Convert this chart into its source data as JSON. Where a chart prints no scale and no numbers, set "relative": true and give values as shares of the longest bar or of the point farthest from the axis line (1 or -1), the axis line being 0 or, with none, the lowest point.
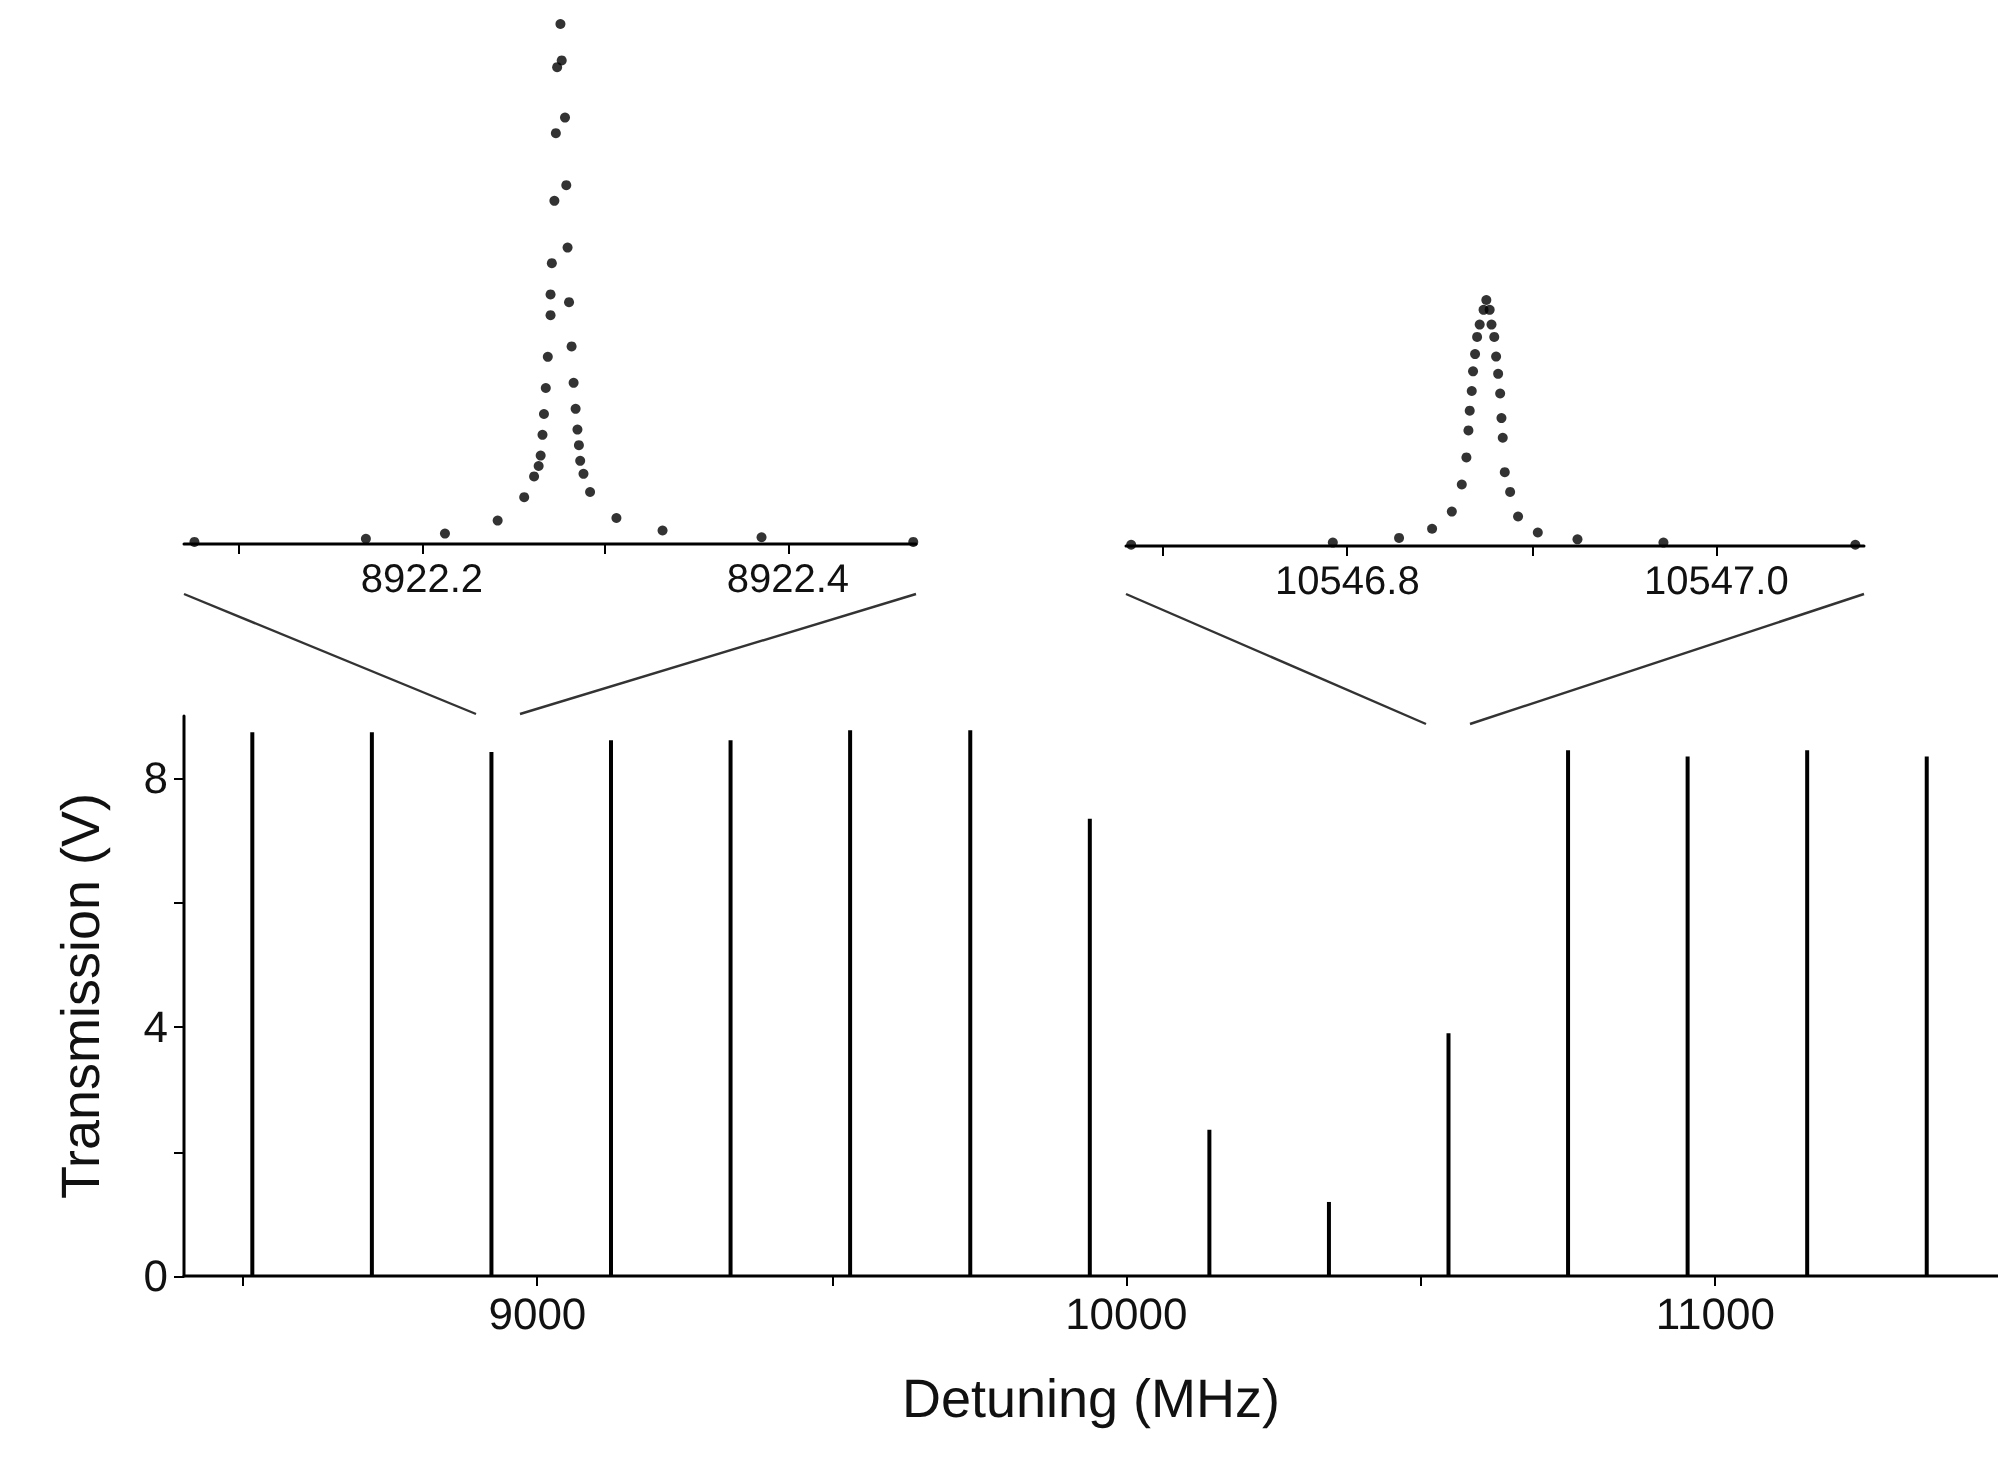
{
  "chart_data": [
    {
      "type": "bar",
      "xlabel": "Detuning (MHz)",
      "ylabel": "Transmission (V)",
      "x": [
        8516,
        8719,
        8922,
        9125,
        9328,
        9531,
        9735,
        9938,
        10141,
        10344,
        10547,
        10750,
        10953,
        11156,
        11359
      ],
      "values": [
        8.74,
        8.74,
        8.42,
        8.61,
        8.61,
        8.77,
        8.77,
        7.35,
        2.35,
        1.19,
        3.9,
        8.45,
        8.35,
        8.45,
        8.35
      ],
      "color": "#000000",
      "xlim": [
        8400,
        11480
      ],
      "xticks": [
        {
          "value": 8500,
          "label": null
        },
        9000,
        {
          "value": 9500,
          "label": null
        },
        10000,
        {
          "value": 10500,
          "label": null
        },
        11000
      ],
      "ylim": [
        0,
        9
      ],
      "yticks": [
        0,
        {
          "value": 2,
          "label": null
        },
        4,
        {
          "value": 6,
          "label": null
        },
        8
      ],
      "grid": false
    },
    {
      "type": "scatter",
      "relative": true,
      "marker": "circle",
      "color": "#000000",
      "x": [
        8922.0757,
        8922.1694,
        8922.2126,
        8922.2414,
        8922.2559,
        8922.2613,
        8922.2638,
        8922.2649,
        8922.2659,
        8922.2667,
        8922.2677,
        8922.2688,
        8922.2703,
        8922.2703,
        8922.271,
        8922.2724,
        8922.2732,
        8922.2739,
        8922.2757,
        8922.2764,
        8922.2782,
        8922.2789,
        8922.2796,
        8922.2804,
        8922.2818,
        8922.2829,
        8922.284,
        8922.285,
        8922.2858,
        8922.2865,
        8922.2883,
        8922.2919,
        8922.3063,
        8922.3315,
        8922.3856,
        8922.4685
      ],
      "values": [
        0.004,
        0.01,
        0.02,
        0.045,
        0.09,
        0.13,
        0.15,
        0.17,
        0.21,
        0.25,
        0.3,
        0.36,
        0.48,
        0.44,
        0.54,
        0.66,
        0.79,
        0.917,
        1.0,
        0.93,
        0.82,
        0.69,
        0.57,
        0.465,
        0.38,
        0.31,
        0.26,
        0.22,
        0.19,
        0.16,
        0.135,
        0.1,
        0.05,
        0.026,
        0.013,
        0.004
      ],
      "xlim": [
        8922.07,
        8922.47
      ],
      "xticks": [
        {
          "value": 8922.1,
          "label": null
        },
        8922.2,
        {
          "value": 8922.3,
          "label": null
        },
        8922.4
      ],
      "grid": false
    },
    {
      "type": "scatter",
      "relative": true,
      "marker": "circle",
      "color": "#000000",
      "x": [
        10546.6828,
        10546.7921,
        10546.828,
        10546.8459,
        10546.8566,
        10546.862,
        10546.8645,
        10546.8656,
        10546.8663,
        10546.8674,
        10546.8681,
        10546.8692,
        10546.8703,
        10546.8717,
        10546.8738,
        10546.8753,
        10546.8771,
        10546.8781,
        10546.8796,
        10546.8806,
        10546.8817,
        10546.8828,
        10546.8835,
        10546.8842,
        10546.8853,
        10546.8882,
        10546.8925,
        10546.9032,
        10546.9247,
        10546.9713,
        10547.0753
      ],
      "values": [
        0.005,
        0.014,
        0.033,
        0.07,
        0.14,
        0.25,
        0.36,
        0.47,
        0.55,
        0.63,
        0.71,
        0.78,
        0.85,
        0.9,
        0.96,
        1.0,
        0.96,
        0.9,
        0.85,
        0.77,
        0.7,
        0.62,
        0.52,
        0.44,
        0.3,
        0.22,
        0.12,
        0.055,
        0.027,
        0.014,
        0.005
      ],
      "xlim": [
        10546.68,
        10547.08
      ],
      "xticks": [
        {
          "value": 10546.7,
          "label": null
        },
        10546.8,
        {
          "value": 10546.9,
          "label": null
        },
        {
          "value": 10547.0,
          "label": "10547.0"
        }
      ],
      "grid": false
    }
  ]
}
